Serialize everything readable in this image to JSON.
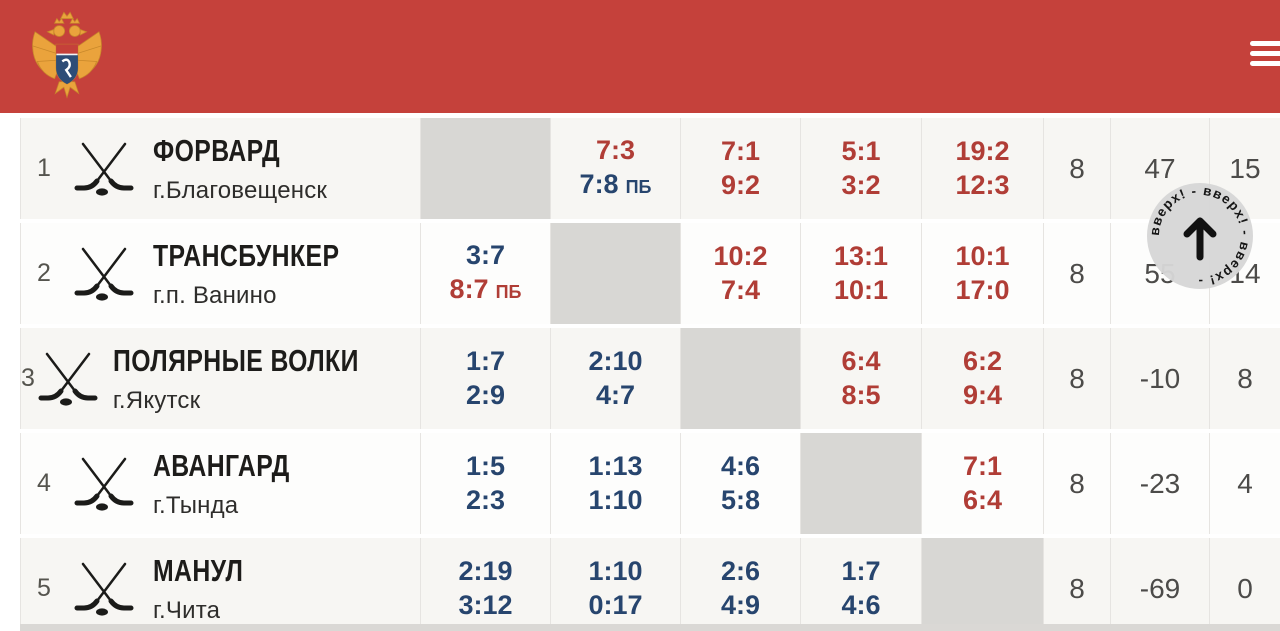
{
  "colors": {
    "header_bg": "#c5413b",
    "win": "#b03d36",
    "loss": "#27456e",
    "diagonal": "#d8d7d4",
    "row_odd": "#f7f6f3",
    "row_even": "#fdfdfc",
    "stat_text": "#4c4b49"
  },
  "header": {
    "logo_icon": "fhr-eagle-emblem",
    "menu_icon": "hamburger"
  },
  "scroll_top": {
    "label": "вверх! - вверх! - вверх! - ",
    "arrow_icon": "up-arrow"
  },
  "table": {
    "teams": [
      {
        "rank": "1",
        "name": "ФОРВАРД",
        "city": "г.Благовещенск",
        "games": "8",
        "diff": "47",
        "points": "15",
        "results": [
          {
            "diagonal": true
          },
          {
            "lines": [
              {
                "score": "7:3",
                "tag": "",
                "result": "win"
              },
              {
                "score": "7:8",
                "tag": "ПБ",
                "result": "loss"
              }
            ]
          },
          {
            "lines": [
              {
                "score": "7:1",
                "tag": "",
                "result": "win"
              },
              {
                "score": "9:2",
                "tag": "",
                "result": "win"
              }
            ]
          },
          {
            "lines": [
              {
                "score": "5:1",
                "tag": "",
                "result": "win"
              },
              {
                "score": "3:2",
                "tag": "",
                "result": "win"
              }
            ]
          },
          {
            "lines": [
              {
                "score": "19:2",
                "tag": "",
                "result": "win"
              },
              {
                "score": "12:3",
                "tag": "",
                "result": "win"
              }
            ]
          }
        ]
      },
      {
        "rank": "2",
        "name": "ТРАНСБУНКЕР",
        "city": "г.п. Ванино",
        "games": "8",
        "diff": "55",
        "points": "14",
        "results": [
          {
            "lines": [
              {
                "score": "3:7",
                "tag": "",
                "result": "loss"
              },
              {
                "score": "8:7",
                "tag": "ПБ",
                "result": "win"
              }
            ]
          },
          {
            "diagonal": true
          },
          {
            "lines": [
              {
                "score": "10:2",
                "tag": "",
                "result": "win"
              },
              {
                "score": "7:4",
                "tag": "",
                "result": "win"
              }
            ]
          },
          {
            "lines": [
              {
                "score": "13:1",
                "tag": "",
                "result": "win"
              },
              {
                "score": "10:1",
                "tag": "",
                "result": "win"
              }
            ]
          },
          {
            "lines": [
              {
                "score": "10:1",
                "tag": "",
                "result": "win"
              },
              {
                "score": "17:0",
                "tag": "",
                "result": "win"
              }
            ]
          }
        ]
      },
      {
        "rank": "3",
        "name": "ПОЛЯРНЫЕ ВОЛКИ",
        "city": "г.Якутск",
        "games": "8",
        "diff": "-10",
        "points": "8",
        "results": [
          {
            "lines": [
              {
                "score": "1:7",
                "tag": "",
                "result": "loss"
              },
              {
                "score": "2:9",
                "tag": "",
                "result": "loss"
              }
            ]
          },
          {
            "lines": [
              {
                "score": "2:10",
                "tag": "",
                "result": "loss"
              },
              {
                "score": "4:7",
                "tag": "",
                "result": "loss"
              }
            ]
          },
          {
            "diagonal": true
          },
          {
            "lines": [
              {
                "score": "6:4",
                "tag": "",
                "result": "win"
              },
              {
                "score": "8:5",
                "tag": "",
                "result": "win"
              }
            ]
          },
          {
            "lines": [
              {
                "score": "6:2",
                "tag": "",
                "result": "win"
              },
              {
                "score": "9:4",
                "tag": "",
                "result": "win"
              }
            ]
          }
        ]
      },
      {
        "rank": "4",
        "name": "АВАНГАРД",
        "city": "г.Тында",
        "games": "8",
        "diff": "-23",
        "points": "4",
        "results": [
          {
            "lines": [
              {
                "score": "1:5",
                "tag": "",
                "result": "loss"
              },
              {
                "score": "2:3",
                "tag": "",
                "result": "loss"
              }
            ]
          },
          {
            "lines": [
              {
                "score": "1:13",
                "tag": "",
                "result": "loss"
              },
              {
                "score": "1:10",
                "tag": "",
                "result": "loss"
              }
            ]
          },
          {
            "lines": [
              {
                "score": "4:6",
                "tag": "",
                "result": "loss"
              },
              {
                "score": "5:8",
                "tag": "",
                "result": "loss"
              }
            ]
          },
          {
            "diagonal": true
          },
          {
            "lines": [
              {
                "score": "7:1",
                "tag": "",
                "result": "win"
              },
              {
                "score": "6:4",
                "tag": "",
                "result": "win"
              }
            ]
          }
        ]
      },
      {
        "rank": "5",
        "name": "МАНУЛ",
        "city": "г.Чита",
        "games": "8",
        "diff": "-69",
        "points": "0",
        "results": [
          {
            "lines": [
              {
                "score": "2:19",
                "tag": "",
                "result": "loss"
              },
              {
                "score": "3:12",
                "tag": "",
                "result": "loss"
              }
            ]
          },
          {
            "lines": [
              {
                "score": "1:10",
                "tag": "",
                "result": "loss"
              },
              {
                "score": "0:17",
                "tag": "",
                "result": "loss"
              }
            ]
          },
          {
            "lines": [
              {
                "score": "2:6",
                "tag": "",
                "result": "loss"
              },
              {
                "score": "4:9",
                "tag": "",
                "result": "loss"
              }
            ]
          },
          {
            "lines": [
              {
                "score": "1:7",
                "tag": "",
                "result": "loss"
              },
              {
                "score": "4:6",
                "tag": "",
                "result": "loss"
              }
            ]
          },
          {
            "diagonal": true
          }
        ]
      }
    ]
  }
}
